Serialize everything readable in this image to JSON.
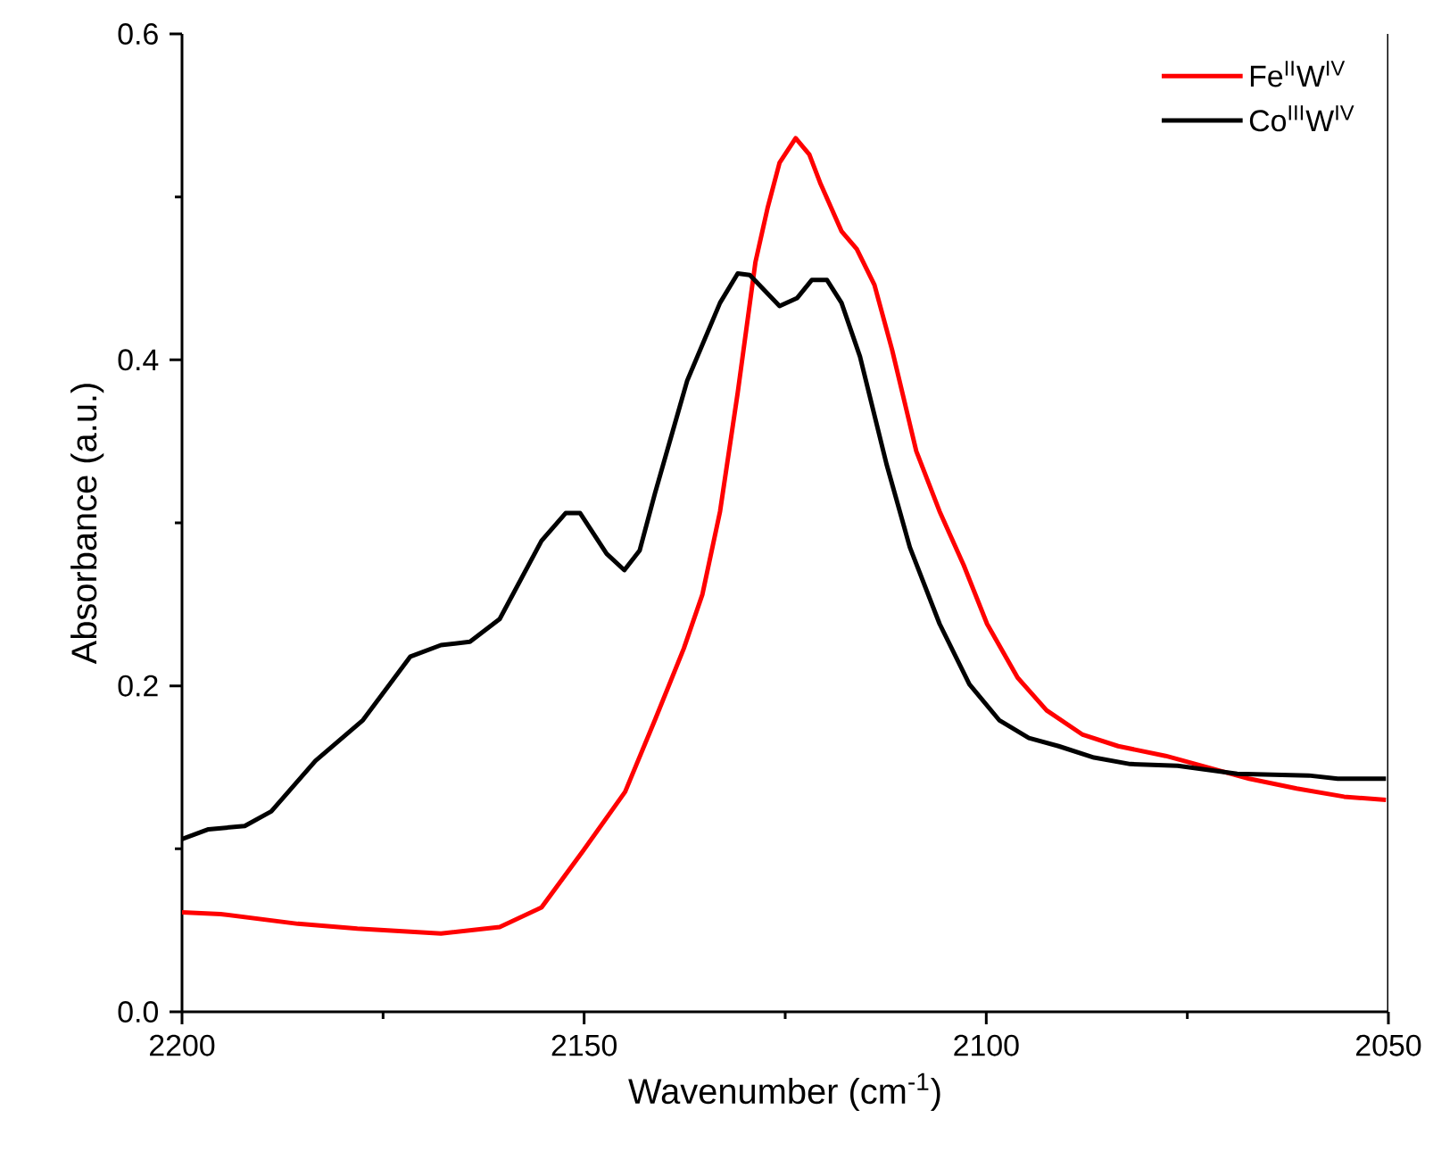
{
  "chart_data": {
    "type": "line",
    "xlabel": "Wavenumber (cm$^{-1}$)",
    "ylabel": "Absorbance (a.u.)",
    "xlim": [
      2200,
      2050
    ],
    "ylim": [
      0,
      0.6
    ],
    "xticks": [
      2200,
      {
        "value": 2175,
        "label": null
      },
      2150,
      {
        "value": 2125,
        "label": null
      },
      2100,
      {
        "value": 2075,
        "label": null
      },
      2050
    ],
    "yticks": [
      {
        "value": 0,
        "label": "0.0"
      },
      {
        "value": 0.1,
        "label": null
      },
      0.2,
      {
        "value": 0.3,
        "label": null
      },
      0.4,
      {
        "value": 0.5,
        "label": null
      },
      0.6
    ],
    "legend": "top right",
    "grid": false,
    "marker": "none",
    "line_style": "solid",
    "series": [
      {
        "name": "Fe$^{II}$W$^{IV}$",
        "color": "#ff0000",
        "x": [
          2200,
          2195.2,
          2185.6,
          2178.2,
          2167.8,
          2160.5,
          2155.3,
          2150.1,
          2144.9,
          2141.2,
          2137.6,
          2135.3,
          2133.1,
          2130.9,
          2128.7,
          2127.2,
          2125.7,
          2123.7,
          2122,
          2120.6,
          2118,
          2116.1,
          2113.9,
          2111.7,
          2108.7,
          2105.8,
          2102.8,
          2099.9,
          2096.1,
          2092.5,
          2088,
          2083.6,
          2077.7,
          2072.5,
          2067.3,
          2061.4,
          2055.5,
          2050.3
        ],
        "values": [
          0.061,
          0.06,
          0.054,
          0.051,
          0.048,
          0.052,
          0.064,
          0.099,
          0.135,
          0.179,
          0.223,
          0.256,
          0.307,
          0.38,
          0.46,
          0.493,
          0.521,
          0.536,
          0.526,
          0.508,
          0.479,
          0.468,
          0.446,
          0.406,
          0.344,
          0.307,
          0.274,
          0.238,
          0.205,
          0.185,
          0.17,
          0.163,
          0.157,
          0.15,
          0.143,
          0.137,
          0.132,
          0.13
        ]
      },
      {
        "name": "Co$^{III}$W$^{IV}$",
        "color": "#000000",
        "x": [
          2200,
          2196.7,
          2192.2,
          2188.9,
          2183.4,
          2177.5,
          2171.6,
          2167.8,
          2164.2,
          2160.5,
          2155.3,
          2152.3,
          2150.5,
          2147.2,
          2145,
          2143.1,
          2141.2,
          2139,
          2137.2,
          2133.1,
          2130.9,
          2129.4,
          2125.7,
          2123.5,
          2121.7,
          2119.8,
          2118,
          2115.7,
          2112.4,
          2109.5,
          2105.8,
          2102.1,
          2098.4,
          2094.7,
          2091,
          2086.6,
          2082.1,
          2076.2,
          2068.8,
          2059.9,
          2056.3,
          2050.3
        ],
        "values": [
          0.106,
          0.112,
          0.114,
          0.123,
          0.154,
          0.179,
          0.218,
          0.225,
          0.227,
          0.241,
          0.289,
          0.306,
          0.306,
          0.281,
          0.271,
          0.283,
          0.318,
          0.356,
          0.387,
          0.435,
          0.453,
          0.452,
          0.433,
          0.438,
          0.449,
          0.449,
          0.435,
          0.402,
          0.336,
          0.285,
          0.238,
          0.201,
          0.179,
          0.168,
          0.163,
          0.156,
          0.152,
          0.151,
          0.146,
          0.145,
          0.143,
          0.143
        ]
      }
    ]
  }
}
